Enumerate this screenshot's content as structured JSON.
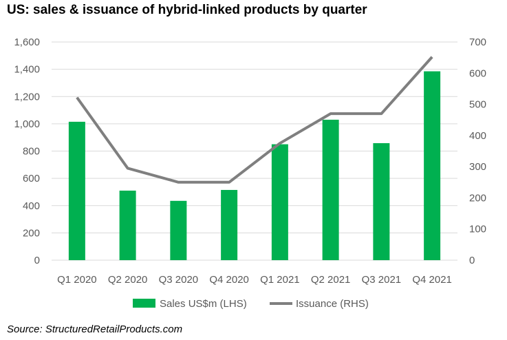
{
  "title": "US: sales & issuance of hybrid-linked products by quarter",
  "source": "Source: StructuredRetailProducts.com",
  "colors": {
    "bar": "#00b050",
    "line": "#7f7f7f",
    "grid": "#d9d9d9",
    "axis_text": "#595959"
  },
  "chart_data": {
    "type": "bar",
    "categories": [
      "Q1 2020",
      "Q2 2020",
      "Q3 2020",
      "Q4 2020",
      "Q1 2021",
      "Q2 2021",
      "Q3 2021",
      "Q4 2021"
    ],
    "series": [
      {
        "name": "Sales US$m (LHS)",
        "type": "bar",
        "axis": "left",
        "values": [
          1015,
          510,
          435,
          515,
          850,
          1030,
          858,
          1385
        ]
      },
      {
        "name": "Issuance (RHS)",
        "type": "line",
        "axis": "right",
        "values": [
          522,
          295,
          250,
          250,
          375,
          470,
          470,
          652
        ]
      }
    ],
    "y_left": {
      "range": [
        0,
        1600
      ],
      "ticks": [
        "0",
        "200",
        "400",
        "600",
        "800",
        "1,000",
        "1,200",
        "1,400",
        "1,600"
      ]
    },
    "y_right": {
      "range": [
        0,
        700
      ],
      "ticks": [
        "0",
        "100",
        "200",
        "300",
        "400",
        "500",
        "600",
        "700"
      ]
    },
    "grid": true,
    "legend_position": "bottom"
  }
}
